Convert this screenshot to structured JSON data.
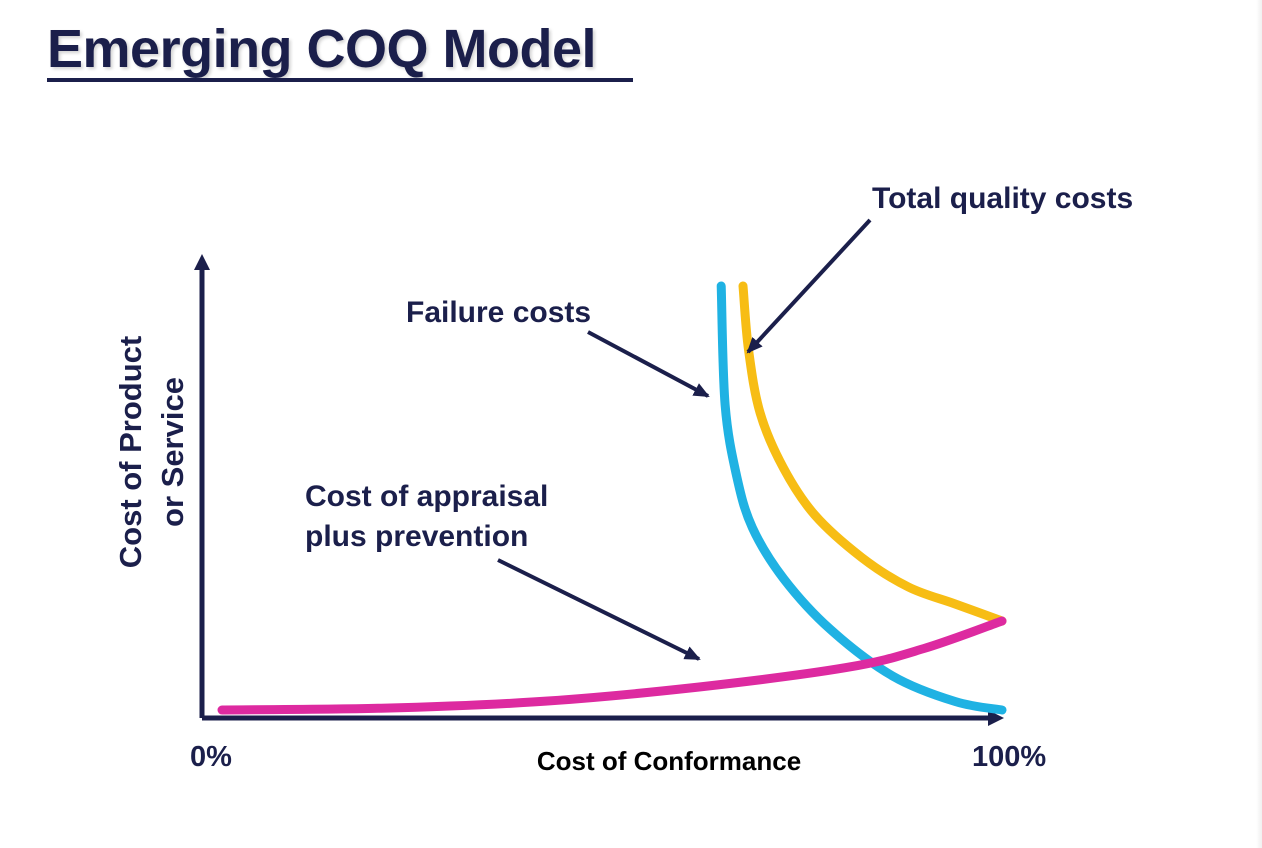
{
  "title": "Emerging COQ Model",
  "chart_data": {
    "type": "line",
    "xlabel": "Cost of Conformance",
    "ylabel_lines": [
      "Cost of Product",
      "or Service"
    ],
    "x_ticks": [
      "0%",
      "100%"
    ],
    "annotations": {
      "total": "Total quality costs",
      "failure": "Failure costs",
      "appraisal_lines": [
        "Cost of appraisal",
        "plus prevention"
      ]
    },
    "series": [
      {
        "key": "failure",
        "color": "#1fb2e3",
        "x": [
          0.64,
          0.645,
          0.66,
          0.68,
          0.72,
          0.78,
          0.86,
          0.94,
          1.0
        ],
        "y": [
          1.0,
          0.72,
          0.55,
          0.43,
          0.31,
          0.19,
          0.08,
          0.02,
          0.0
        ]
      },
      {
        "key": "total",
        "color": "#f7bd14",
        "x": [
          0.668,
          0.675,
          0.69,
          0.72,
          0.76,
          0.82,
          0.88,
          0.94,
          1.0
        ],
        "y": [
          1.0,
          0.85,
          0.7,
          0.57,
          0.46,
          0.36,
          0.29,
          0.25,
          0.21
        ]
      },
      {
        "key": "appraisal",
        "color": "#dd2aa0",
        "x": [
          0.0,
          0.2,
          0.4,
          0.6,
          0.8,
          0.9,
          1.0
        ],
        "y": [
          0.0,
          0.004,
          0.019,
          0.052,
          0.1,
          0.145,
          0.21
        ]
      }
    ]
  }
}
